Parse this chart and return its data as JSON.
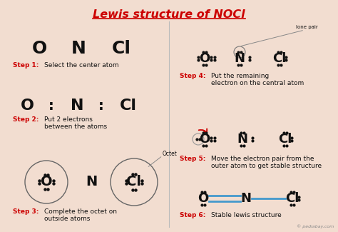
{
  "title": "Lewis structure of NOCl",
  "title_color": "#cc0000",
  "bg_color": "#f2ddd0",
  "step1_label": "Step 1:",
  "step1_text": "Select the center atom",
  "step2_label": "Step 2:",
  "step2_text": "Put 2 electrons\nbetween the atoms",
  "step3_label": "Step 3:",
  "step3_text": "Complete the octet on\noutside atoms",
  "step4_label": "Step 4:",
  "step4_text": "Put the remaining\nelectron on the central atom",
  "step5_label": "Step 5:",
  "step5_text": "Move the electron pair from the\nouter atom to get stable structure",
  "step6_label": "Step 6:",
  "step6_text": "Stable lewis structure",
  "red_color": "#cc0000",
  "black_color": "#111111",
  "blue_color": "#4499cc",
  "gray_color": "#888888",
  "watermark": "© pediabay.com",
  "dot_color": "#111111"
}
